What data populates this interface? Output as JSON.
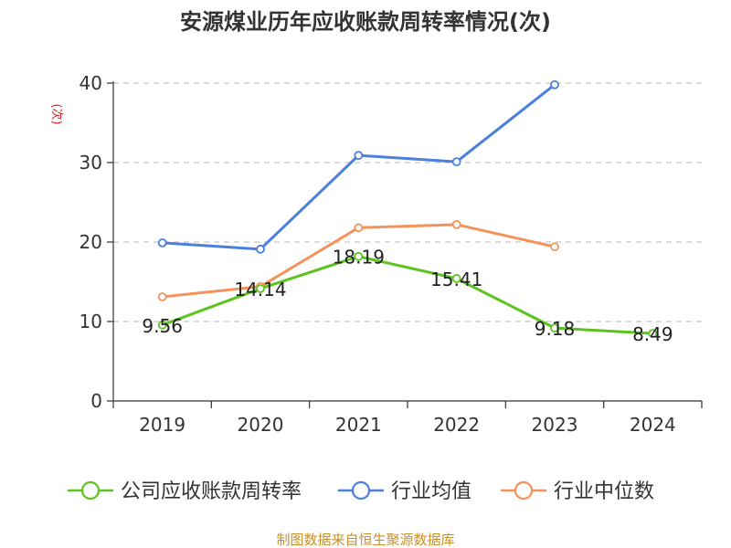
{
  "chart_data": {
    "type": "line",
    "title": "安源煤业历年应收账款周转率情况(次)",
    "ylabel": "(次)",
    "xlabel": "",
    "categories": [
      "2019",
      "2020",
      "2021",
      "2022",
      "2023",
      "2024"
    ],
    "ylim": [
      0,
      40
    ],
    "yticks": [
      0,
      10,
      20,
      30,
      40
    ],
    "grid": true,
    "legend_position": "bottom",
    "series": [
      {
        "name": "公司应收账款周转率",
        "color": "#5cc320",
        "values": [
          9.56,
          14.14,
          18.19,
          15.41,
          9.18,
          8.49
        ],
        "labels": [
          "9.56",
          "14.14",
          "18.19",
          "15.41",
          "9.18",
          "8.49"
        ]
      },
      {
        "name": "行业均值",
        "color": "#4a7fdc",
        "values": [
          19.9,
          19.1,
          30.9,
          30.1,
          39.8,
          null
        ]
      },
      {
        "name": "行业中位数",
        "color": "#f5925a",
        "values": [
          13.1,
          14.4,
          21.8,
          22.2,
          19.4,
          null
        ]
      }
    ],
    "source": "制图数据来自恒生聚源数据库"
  }
}
